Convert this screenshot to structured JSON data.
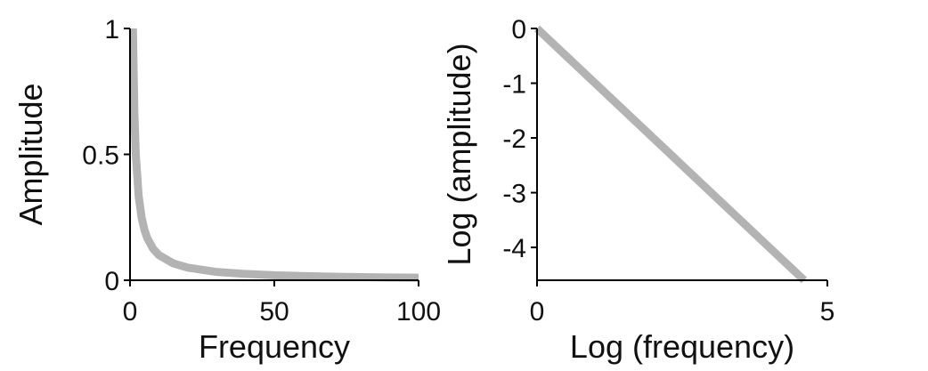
{
  "chart_data": [
    {
      "type": "line",
      "title": "",
      "xlabel": "Frequency",
      "ylabel": "Amplitude",
      "xlim": [
        0,
        100
      ],
      "ylim": [
        0,
        1
      ],
      "xticks": [
        0,
        50,
        100
      ],
      "xtick_labels": [
        "0",
        "50",
        "100"
      ],
      "yticks": [
        0,
        0.5,
        1
      ],
      "ytick_labels": [
        "0",
        "0.5",
        "1"
      ],
      "grid": false,
      "series": [
        {
          "color": "#b3b3b3",
          "x": [
            1,
            1.5,
            2,
            3,
            4,
            5,
            6,
            8,
            10,
            15,
            20,
            30,
            40,
            50,
            60,
            70,
            80,
            90,
            100
          ],
          "y": [
            1,
            0.667,
            0.5,
            0.333,
            0.25,
            0.2,
            0.167,
            0.125,
            0.1,
            0.067,
            0.05,
            0.033,
            0.025,
            0.02,
            0.017,
            0.014,
            0.0125,
            0.011,
            0.01
          ]
        }
      ]
    },
    {
      "type": "line",
      "title": "",
      "xlabel": "Log (frequency)",
      "ylabel": "Log (amplitude)",
      "xlim": [
        0,
        5
      ],
      "ylim": [
        -4.6,
        0
      ],
      "xticks": [
        0,
        5
      ],
      "xtick_labels": [
        "0",
        "5"
      ],
      "yticks": [
        0,
        -1,
        -2,
        -3,
        -4
      ],
      "ytick_labels": [
        "0",
        "-1",
        "-2",
        "-3",
        "-4"
      ],
      "grid": false,
      "series": [
        {
          "color": "#b3b3b3",
          "x": [
            0,
            4.6
          ],
          "y": [
            0,
            -4.6
          ]
        }
      ]
    }
  ]
}
